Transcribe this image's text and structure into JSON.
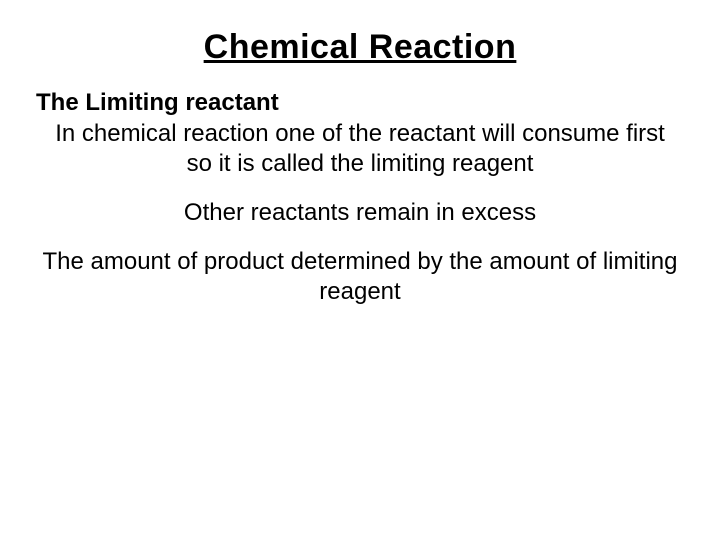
{
  "slide": {
    "title": "Chemical Reaction",
    "subheading": "The Limiting reactant",
    "paragraph1": "In chemical reaction one of the reactant will consume first so it is called the limiting reagent",
    "paragraph2": "Other reactants remain in excess",
    "paragraph3": "The amount of product determined by the amount of limiting reagent"
  },
  "styles": {
    "background_color": "#ffffff",
    "text_color": "#000000",
    "title_fontsize": 34,
    "title_fontweight": "bold",
    "title_underline": true,
    "subheading_fontsize": 24,
    "subheading_fontweight": "bold",
    "body_fontsize": 24,
    "body_fontweight": "normal",
    "font_family": "Arial"
  }
}
